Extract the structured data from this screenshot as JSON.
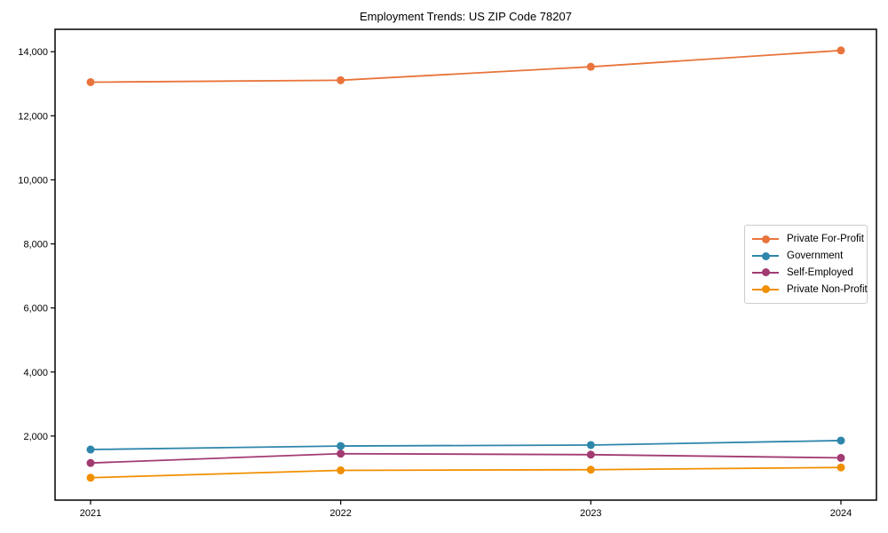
{
  "title": "Employment Trends: US ZIP Code 78207",
  "chart_data": {
    "type": "line",
    "title": "Employment Trends: US ZIP Code 78207",
    "xlabel": "",
    "ylabel": "",
    "categories": [
      "2021",
      "2022",
      "2023",
      "2024"
    ],
    "series": [
      {
        "name": "Private For-Profit",
        "color": "#E8743B",
        "values": [
          13050,
          13110,
          13530,
          14040
        ]
      },
      {
        "name": "Government",
        "color": "#2E86AB",
        "values": [
          1580,
          1690,
          1720,
          1860
        ]
      },
      {
        "name": "Self-Employed",
        "color": "#A23B72",
        "values": [
          1160,
          1450,
          1420,
          1320
        ]
      },
      {
        "name": "Private Non-Profit",
        "color": "#F18F01",
        "values": [
          700,
          930,
          950,
          1020
        ]
      }
    ],
    "ylim": [
      0,
      14700
    ],
    "yticks": [
      2000,
      4000,
      6000,
      8000,
      10000,
      12000,
      14000
    ],
    "ytick_labels": [
      "2,000",
      "4,000",
      "6,000",
      "8,000",
      "10,000",
      "12,000",
      "14,000"
    ],
    "grid": false,
    "legend_position": "center-right",
    "marker": "circle",
    "axis_color": "#000000"
  }
}
